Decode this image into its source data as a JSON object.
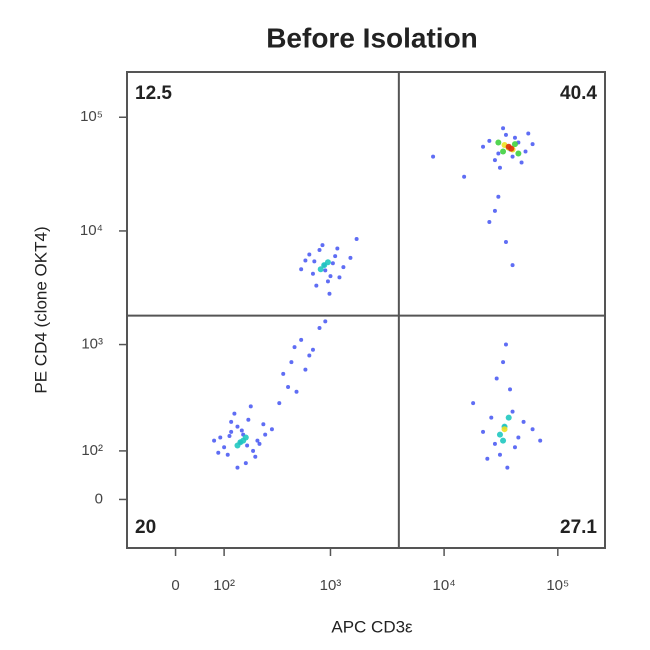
{
  "chart_data": {
    "type": "scatter",
    "title": "Before Isolation",
    "xlabel": "APC CD3ε",
    "ylabel": "PE CD4 (clone OKT4)",
    "scale": "asinh",
    "xlim": [
      -100,
      260000
    ],
    "ylim": [
      -100,
      250000
    ],
    "xticks": [
      0,
      {
        "value": 100,
        "label": "10²"
      },
      {
        "value": 1000,
        "label": "10³"
      },
      {
        "value": 10000,
        "label": "10⁴"
      },
      {
        "value": 100000,
        "label": "10⁵"
      }
    ],
    "yticks": [
      0,
      {
        "value": 100,
        "label": "10²"
      },
      {
        "value": 1000,
        "label": "10³"
      },
      {
        "value": 10000,
        "label": "10⁴"
      },
      {
        "value": 100000,
        "label": "10⁵"
      }
    ],
    "gates": {
      "x": 4000,
      "y": 1800
    },
    "quadrant_values": [
      12.5,
      40.4,
      20,
      27.1
    ],
    "series": [
      {
        "color": "#2a3cf0",
        "x": [
          150,
          120,
          200,
          90,
          180,
          260,
          110,
          140,
          230,
          170,
          75,
          300,
          130,
          210,
          160,
          100,
          190,
          250,
          140,
          120,
          85,
          220,
          175,
          155,
          115,
          350,
          420,
          500,
          600,
          450,
          700,
          380,
          550,
          650,
          800,
          480,
          900,
          880,
          700,
          1100,
          950,
          600,
          1300,
          800,
          1000,
          750,
          1500,
          900,
          650,
          1200,
          850,
          1050,
          1700,
          550,
          980,
          1150,
          720,
          37000,
          30000,
          45000,
          25000,
          52000,
          35000,
          28000,
          60000,
          40000,
          33000,
          22000,
          48000,
          42000,
          31000,
          55000,
          38000,
          30000,
          25000,
          35000,
          28000,
          40000,
          15000,
          8000,
          34000,
          28000,
          40000,
          22000,
          50000,
          31000,
          45000,
          18000,
          36000,
          60000,
          26000,
          38000,
          33000,
          42000,
          29000,
          70000,
          24000,
          35000
        ],
        "values": [
          125,
          160,
          100,
          140,
          210,
          150,
          90,
          180,
          120,
          70,
          130,
          170,
          240,
          85,
          150,
          110,
          280,
          190,
          60,
          200,
          95,
          130,
          115,
          165,
          145,
          300,
          420,
          380,
          600,
          700,
          900,
          550,
          1100,
          800,
          1400,
          950,
          1600,
          5000,
          4200,
          6000,
          3600,
          5500,
          4800,
          6800,
          4000,
          3300,
          5800,
          4500,
          6200,
          3900,
          7500,
          5200,
          8500,
          4600,
          2800,
          7000,
          5400,
          54000,
          48000,
          60000,
          62000,
          50000,
          70000,
          42000,
          58000,
          45000,
          80000,
          55000,
          40000,
          66000,
          36000,
          72000,
          52000,
          20000,
          12000,
          8000,
          15000,
          5000,
          30000,
          45000,
          180,
          120,
          250,
          160,
          200,
          90,
          140,
          300,
          60,
          170,
          220,
          400,
          700,
          110,
          500,
          130,
          80,
          1000
        ]
      },
      {
        "color": "#20c8c0",
        "x": [
          150,
          170,
          140,
          160,
          880,
          820,
          950,
          34000,
          31000,
          37000,
          33000
        ],
        "values": [
          125,
          140,
          115,
          130,
          5000,
          4600,
          5300,
          180,
          150,
          220,
          130
        ]
      },
      {
        "color": "#40d040",
        "x": [
          37000,
          33000,
          42000,
          30000,
          45000
        ],
        "values": [
          54000,
          50000,
          58000,
          60000,
          48000
        ]
      },
      {
        "color": "#f0e020",
        "x": [
          37000,
          40000,
          34000,
          34000
        ],
        "values": [
          54000,
          52000,
          57000,
          170
        ]
      },
      {
        "color": "#e03010",
        "x": [
          37000,
          39000
        ],
        "values": [
          55000,
          53000
        ]
      }
    ]
  }
}
